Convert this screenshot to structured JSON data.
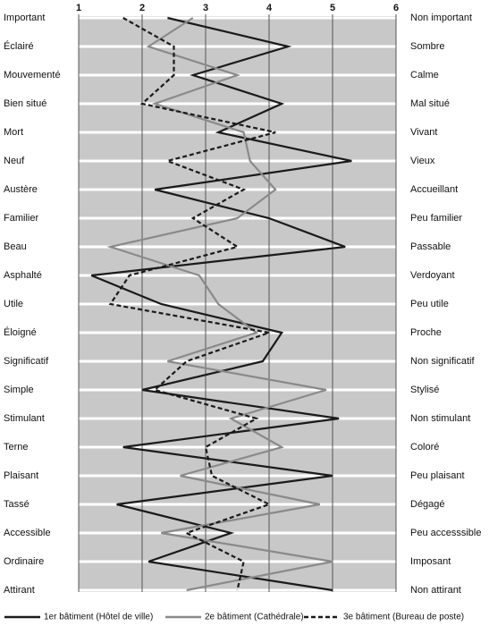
{
  "chart_data": {
    "type": "line",
    "categories": [
      "Important",
      "Éclairé",
      "Mouvementé",
      "Bien situé",
      "Mort",
      "Neuf",
      "Austère",
      "Familier",
      "Beau",
      "Asphalté",
      "Utile",
      "Éloigné",
      "Significatif",
      "Simple",
      "Stimulant",
      "Terne",
      "Plaisant",
      "Tassé",
      "Accessible",
      "Ordinaire",
      "Attirant"
    ],
    "right_labels": [
      "Non important",
      "Sombre",
      "Calme",
      "Mal situé",
      "Vivant",
      "Vieux",
      "Accueillant",
      "Peu familier",
      "Passable",
      "Verdoyant",
      "Peu utile",
      "Proche",
      "Non significatif",
      "Stylisé",
      "Non stimulant",
      "Coloré",
      "Peu plaisant",
      "Dégagé",
      "Peu accesssible",
      "Imposant",
      "Non attirant"
    ],
    "xlim": [
      1,
      6
    ],
    "xticks": [
      1,
      2,
      3,
      4,
      5,
      6
    ],
    "grid": true,
    "series": [
      {
        "name": "1er bâtiment (Hôtel de ville)",
        "color": "#1a1a1a",
        "dash": "solid",
        "values": [
          2.4,
          4.3,
          2.8,
          4.2,
          3.2,
          5.3,
          2.2,
          4.0,
          5.2,
          1.2,
          2.3,
          4.2,
          3.9,
          2.0,
          5.1,
          1.7,
          5.0,
          1.6,
          3.4,
          2.1,
          5.0
        ]
      },
      {
        "name": "2e bâtiment (Cathédrale)",
        "color": "#8a8a8a",
        "dash": "solid",
        "values": [
          2.8,
          2.1,
          3.5,
          2.2,
          3.6,
          3.7,
          4.1,
          3.5,
          1.5,
          2.9,
          3.2,
          3.8,
          2.4,
          4.9,
          3.4,
          4.2,
          2.6,
          4.8,
          2.3,
          5.0,
          2.7
        ]
      },
      {
        "name": "3e bâtiment (Bureau de poste)",
        "color": "#1a1a1a",
        "dash": "dashed",
        "values": [
          1.7,
          2.5,
          2.5,
          2.0,
          4.1,
          2.4,
          3.6,
          2.8,
          3.5,
          1.8,
          1.5,
          4.0,
          2.7,
          2.2,
          3.8,
          3.0,
          3.1,
          4.0,
          2.7,
          3.6,
          3.5
        ]
      }
    ]
  }
}
